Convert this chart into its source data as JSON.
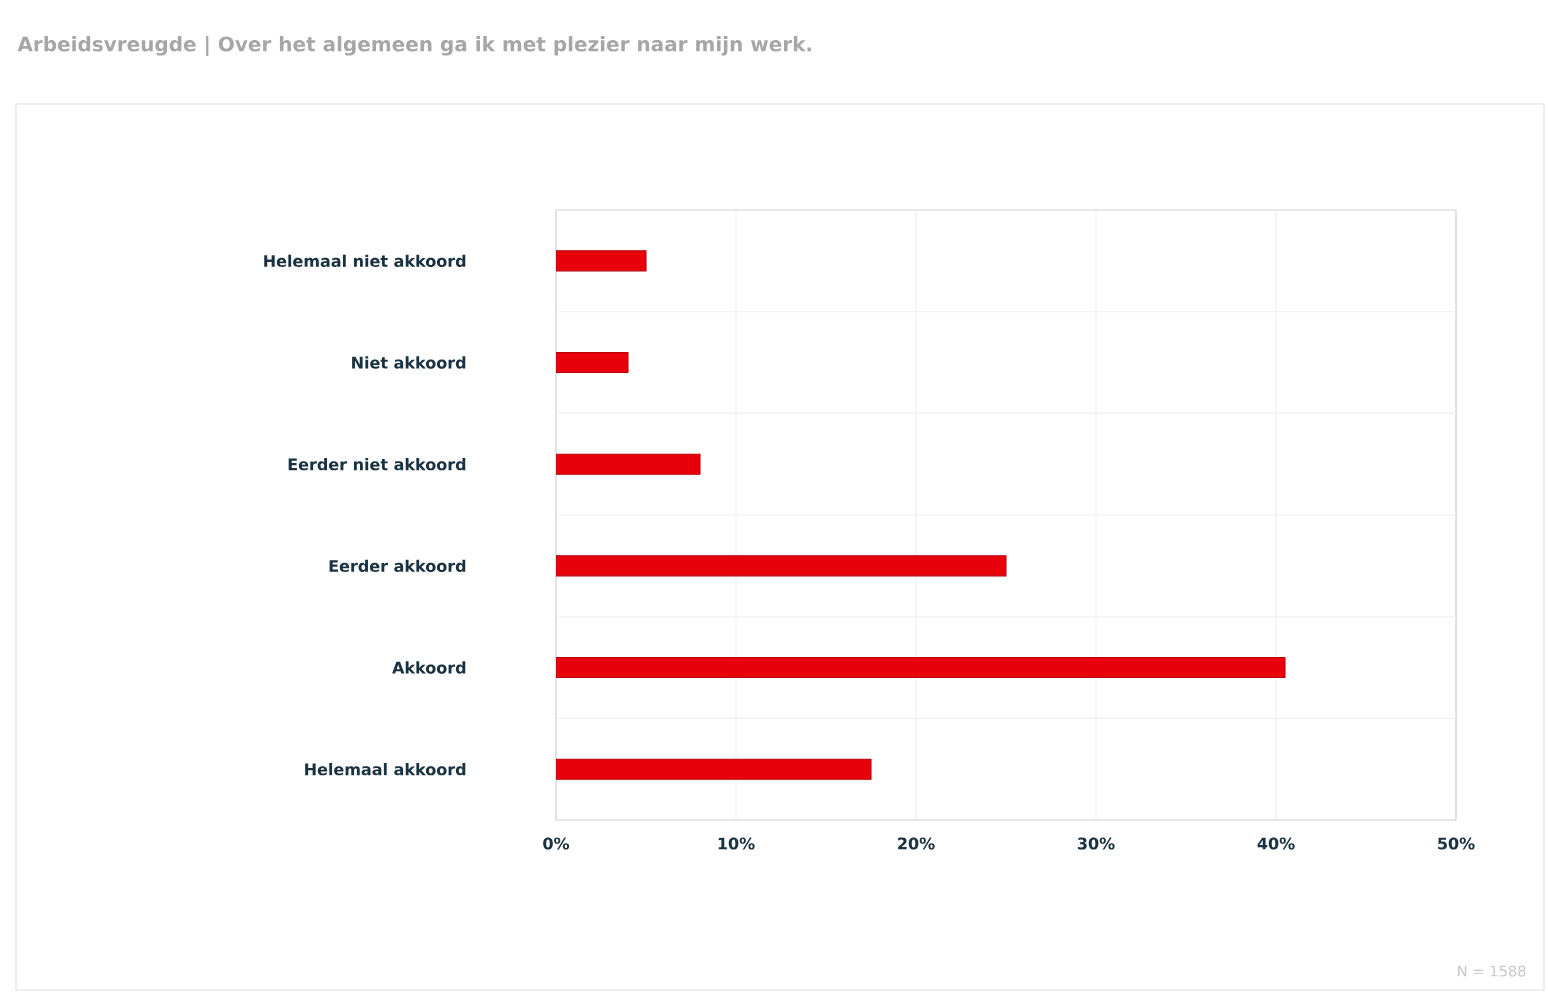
{
  "chart_data": {
    "type": "bar",
    "orientation": "horizontal",
    "title": "Arbeidsvreugde | Over het algemeen ga ik met plezier naar mijn werk.",
    "categories": [
      "Helemaal niet akkoord",
      "Niet akkoord",
      "Eerder niet akkoord",
      "Eerder akkoord",
      "Akkoord",
      "Helemaal akkoord"
    ],
    "values": [
      5,
      4,
      8,
      25,
      40.5,
      17.5
    ],
    "color": "#e8000b",
    "xlim": [
      0,
      50
    ],
    "xticks": [
      {
        "value": 0,
        "label": "0%"
      },
      {
        "value": 10,
        "label": "10%"
      },
      {
        "value": 20,
        "label": "20%"
      },
      {
        "value": 30,
        "label": "30%"
      },
      {
        "value": 40,
        "label": "40%"
      },
      {
        "value": 50,
        "label": "50%"
      }
    ],
    "grid": "x",
    "annotations": [
      "N = 1588"
    ]
  }
}
